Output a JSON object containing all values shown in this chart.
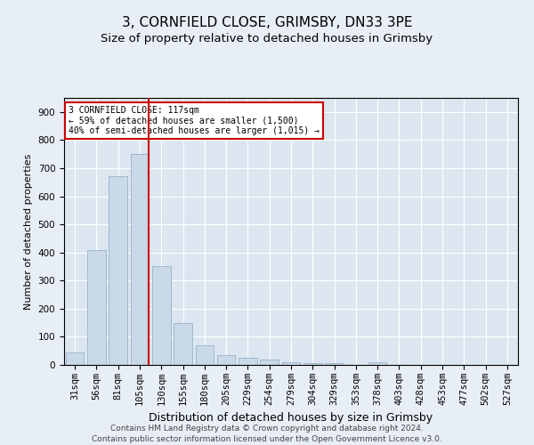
{
  "title1": "3, CORNFIELD CLOSE, GRIMSBY, DN33 3PE",
  "title2": "Size of property relative to detached houses in Grimsby",
  "xlabel": "Distribution of detached houses by size in Grimsby",
  "ylabel": "Number of detached properties",
  "categories": [
    "31sqm",
    "56sqm",
    "81sqm",
    "105sqm",
    "130sqm",
    "155sqm",
    "180sqm",
    "205sqm",
    "229sqm",
    "254sqm",
    "279sqm",
    "304sqm",
    "329sqm",
    "353sqm",
    "378sqm",
    "403sqm",
    "428sqm",
    "453sqm",
    "477sqm",
    "502sqm",
    "527sqm"
  ],
  "values": [
    45,
    410,
    670,
    750,
    350,
    150,
    70,
    35,
    25,
    18,
    10,
    5,
    5,
    0,
    8,
    0,
    0,
    0,
    0,
    0,
    0
  ],
  "bar_color": "#c9d9e8",
  "bar_edge_color": "#a0b8cc",
  "vline_color": "#cc0000",
  "annotation_text": "3 CORNFIELD CLOSE: 117sqm\n← 59% of detached houses are smaller (1,500)\n40% of semi-detached houses are larger (1,015) →",
  "annotation_box_color": "#ffffff",
  "annotation_box_edge": "#cc0000",
  "ylim": [
    0,
    950
  ],
  "yticks": [
    0,
    100,
    200,
    300,
    400,
    500,
    600,
    700,
    800,
    900
  ],
  "background_color": "#e8eef5",
  "plot_bg_color": "#dce6f0",
  "footer": "Contains HM Land Registry data © Crown copyright and database right 2024.\nContains public sector information licensed under the Open Government Licence v3.0.",
  "title1_fontsize": 11,
  "title2_fontsize": 9.5,
  "xlabel_fontsize": 9,
  "ylabel_fontsize": 8,
  "tick_fontsize": 7.5,
  "footer_fontsize": 6.5
}
